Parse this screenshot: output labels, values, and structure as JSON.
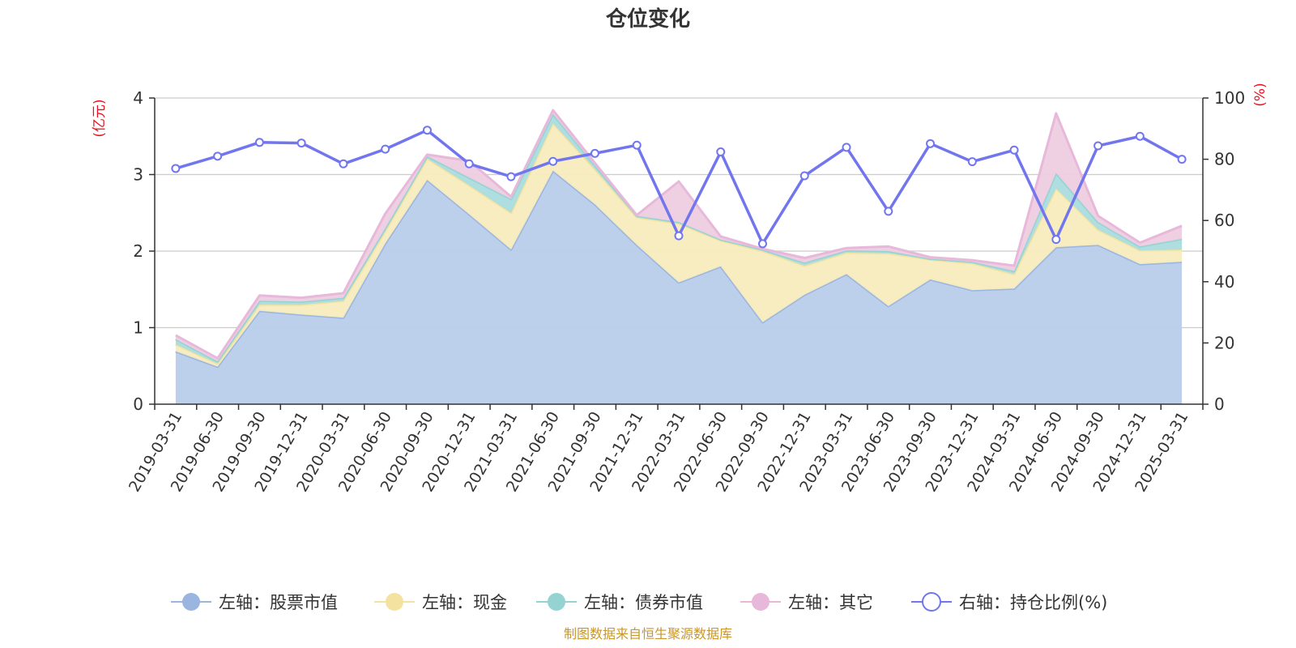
{
  "chart_data": {
    "type": "area",
    "title": "仓位变化",
    "left_unit": "(亿元)",
    "right_unit": "(%)",
    "source": "制图数据来自恒生聚源数据库",
    "categories": [
      "2019-03-31",
      "2019-06-30",
      "2019-09-30",
      "2019-12-31",
      "2020-03-31",
      "2020-06-30",
      "2020-09-30",
      "2020-12-31",
      "2021-03-31",
      "2021-06-30",
      "2021-09-30",
      "2021-12-31",
      "2022-03-31",
      "2022-06-30",
      "2022-09-30",
      "2022-12-31",
      "2023-03-31",
      "2023-06-30",
      "2023-09-30",
      "2023-12-31",
      "2024-03-31",
      "2024-06-30",
      "2024-09-30",
      "2024-12-31",
      "2025-03-31"
    ],
    "left_axis": {
      "min": 0,
      "max": 4,
      "ticks": [
        "0",
        "1",
        "2",
        "3",
        "4"
      ]
    },
    "right_axis": {
      "min": 0,
      "max": 100,
      "ticks": [
        "0",
        "20",
        "40",
        "60",
        "80",
        "100"
      ]
    },
    "grid": true,
    "legend_position": "bottom",
    "series": [
      {
        "name": "左轴：股票市值",
        "axis": "left",
        "kind": "stacked-area",
        "color": "#9ab5e0",
        "fill": "#b8cdea",
        "values": [
          0.69,
          0.49,
          1.22,
          1.17,
          1.13,
          2.1,
          2.93,
          2.48,
          2.02,
          3.05,
          2.61,
          2.08,
          1.59,
          1.8,
          1.07,
          1.43,
          1.7,
          1.28,
          1.63,
          1.49,
          1.51,
          2.05,
          2.08,
          1.83,
          1.86
        ]
      },
      {
        "name": "左轴：现金",
        "axis": "left",
        "kind": "stacked-area",
        "color": "#f4e2a0",
        "fill": "#f8ecbe",
        "values": [
          0.09,
          0.04,
          0.08,
          0.13,
          0.22,
          0.16,
          0.28,
          0.38,
          0.48,
          0.62,
          0.46,
          0.36,
          0.77,
          0.34,
          0.93,
          0.38,
          0.28,
          0.69,
          0.26,
          0.35,
          0.19,
          0.77,
          0.2,
          0.18,
          0.16
        ]
      },
      {
        "name": "左轴：债券市值",
        "axis": "left",
        "kind": "stacked-area",
        "color": "#94d3d2",
        "fill": "#abdcde",
        "values": [
          0.07,
          0.03,
          0.05,
          0.04,
          0.04,
          0.04,
          0.03,
          0.1,
          0.18,
          0.12,
          0.05,
          0.02,
          0.02,
          0.01,
          0.02,
          0.04,
          0.03,
          0.03,
          0.01,
          0.02,
          0.04,
          0.2,
          0.1,
          0.05,
          0.14
        ]
      },
      {
        "name": "左轴：其它",
        "axis": "left",
        "kind": "stacked-area",
        "color": "#e7b8da",
        "fill": "#eecde2",
        "values": [
          0.05,
          0.04,
          0.07,
          0.05,
          0.06,
          0.19,
          0.02,
          0.22,
          0.03,
          0.05,
          0.03,
          0.01,
          0.53,
          0.04,
          0.01,
          0.06,
          0.03,
          0.06,
          0.02,
          0.02,
          0.07,
          0.78,
          0.08,
          0.05,
          0.17
        ]
      },
      {
        "name": "右轴：持仓比例(%)",
        "axis": "right",
        "kind": "line",
        "color": "#7276ee",
        "values": [
          77.0,
          81.0,
          85.5,
          85.3,
          78.5,
          83.3,
          89.5,
          78.5,
          74.3,
          79.3,
          81.9,
          84.6,
          55.0,
          82.4,
          52.4,
          74.6,
          83.9,
          63.0,
          85.1,
          79.2,
          83.0,
          53.8,
          84.4,
          87.5,
          80.0
        ]
      }
    ]
  }
}
